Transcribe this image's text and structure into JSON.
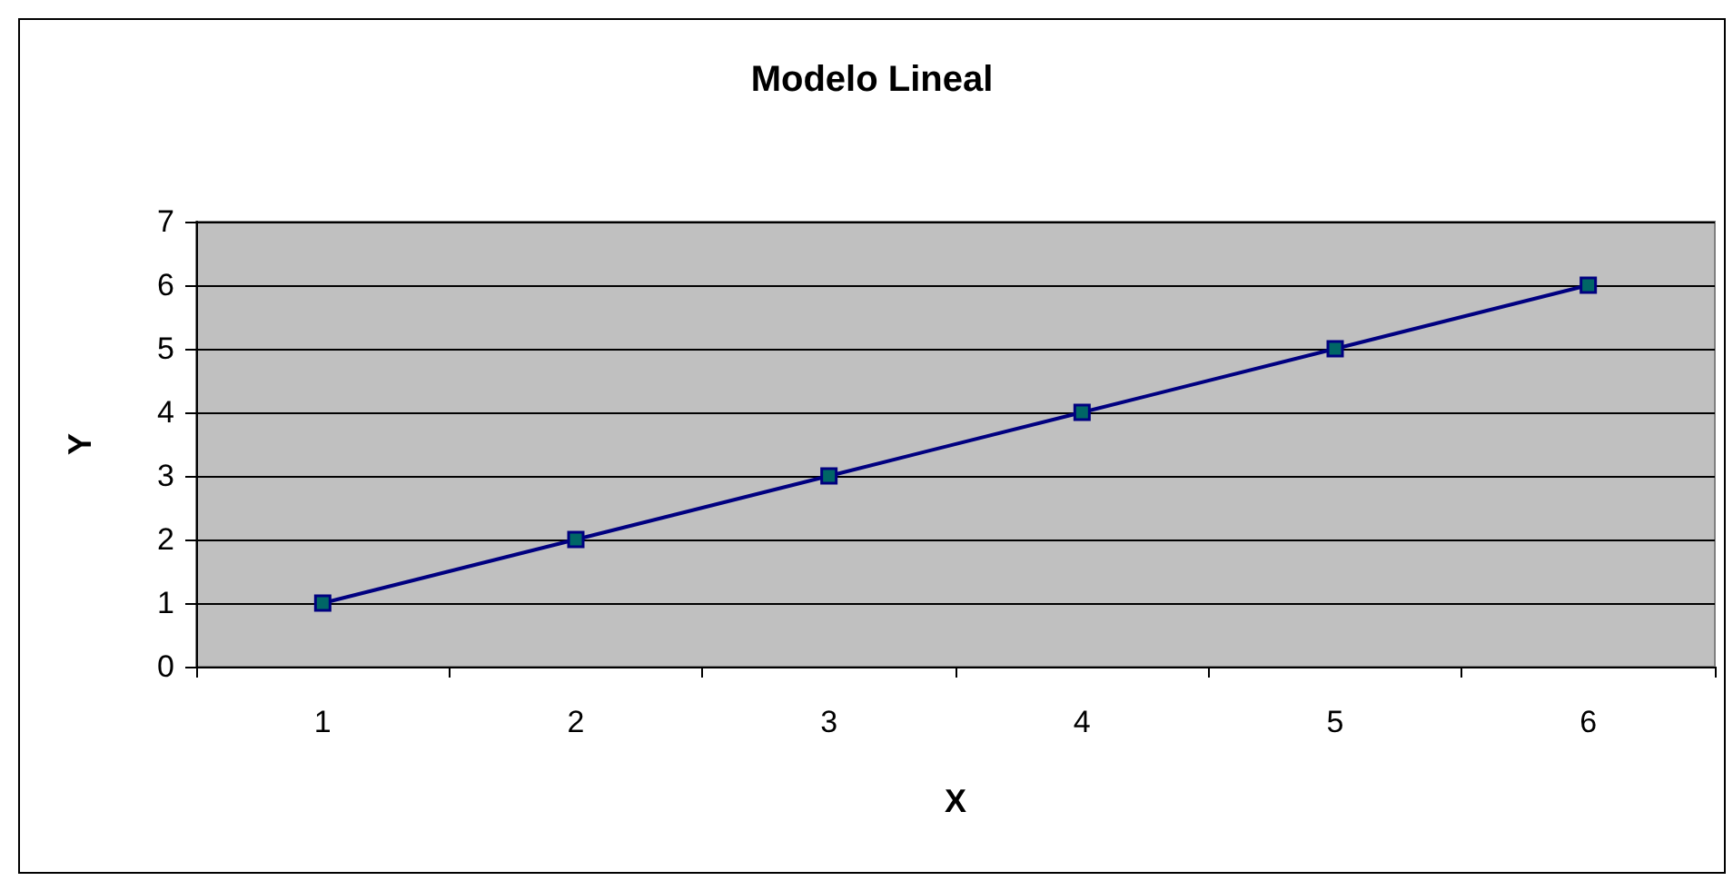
{
  "chart_data": {
    "type": "line",
    "title": "Modelo Lineal",
    "xlabel": "X",
    "ylabel": "Y",
    "categories": [
      "1",
      "2",
      "3",
      "4",
      "5",
      "6"
    ],
    "series": [
      {
        "color": "#000080",
        "values": [
          1,
          2,
          3,
          4,
          5,
          6
        ]
      }
    ],
    "ylim": [
      0,
      7
    ],
    "yticks": [
      0,
      1,
      2,
      3,
      4,
      5,
      6,
      7
    ],
    "grid": "y",
    "marker": "square",
    "line_style": "solid"
  }
}
